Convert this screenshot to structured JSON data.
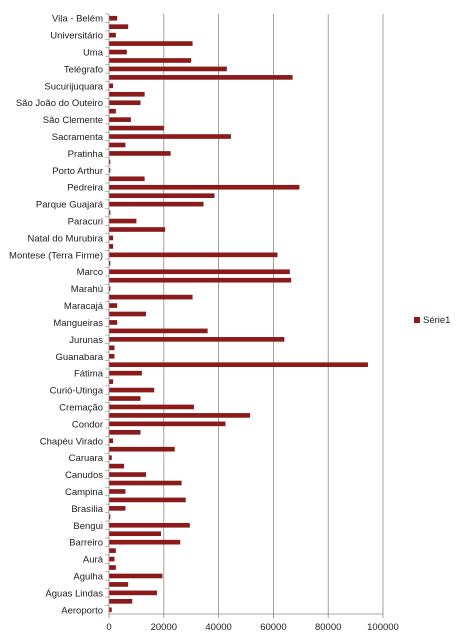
{
  "chart_data": {
    "type": "bar",
    "orientation": "horizontal",
    "categories": [
      "Vila - Belém",
      "",
      "Universitário",
      "",
      "Uma",
      "",
      "Telégrafo",
      "",
      "Sucurijuquara",
      "",
      "São João do Outeiro",
      "",
      "São Clemente",
      "",
      "Sacramenta",
      "",
      "Pratinha",
      "",
      "Porto Arthur",
      "",
      "Pedreira",
      "",
      "Parque Guajará",
      "",
      "Paracuri",
      "",
      "Natal do Murubira",
      "",
      "Montese (Terra Firme)",
      "",
      "Marco",
      "",
      "Marahú",
      "",
      "Maracajá",
      "",
      "Mangueiras",
      "",
      "Jurunas",
      "",
      "Guanabara",
      "",
      "Fátima",
      "",
      "Curió-Utinga",
      "",
      "Cremação",
      "",
      "Condor",
      "",
      "Chapéu Virado",
      "",
      "Caruara",
      "",
      "Canudos",
      "",
      "Campina",
      "",
      "Brasília",
      "",
      "Bengui",
      "",
      "Barreiro",
      "",
      "Aurá",
      "",
      "Agulha",
      "",
      "Águas Lindas",
      "",
      "Aeroporto"
    ],
    "series": [
      {
        "name": "Série1",
        "values": [
          3000,
          7000,
          2500,
          30500,
          6500,
          30000,
          43000,
          67000,
          1500,
          13000,
          11500,
          2500,
          8000,
          20000,
          44500,
          6000,
          22500,
          500,
          500,
          13000,
          69500,
          38500,
          34500,
          500,
          10000,
          20500,
          1500,
          1500,
          61500,
          500,
          66000,
          66500,
          500,
          30500,
          3000,
          13500,
          3000,
          36000,
          64000,
          2000,
          2000,
          94500,
          12000,
          1500,
          16500,
          11500,
          31000,
          51500,
          42500,
          11500,
          1500,
          24000,
          1000,
          5500,
          13500,
          26500,
          6000,
          28000,
          6000,
          500,
          29500,
          19000,
          26000,
          2500,
          2000,
          2500,
          19500,
          7000,
          17500,
          8500,
          1000
        ]
      }
    ],
    "xlim": [
      0,
      100000
    ],
    "xticks": [
      0,
      20000,
      40000,
      60000,
      80000,
      100000
    ],
    "bar_color": "#8b1a1a",
    "grid": "vertical",
    "legend_position": "right"
  }
}
